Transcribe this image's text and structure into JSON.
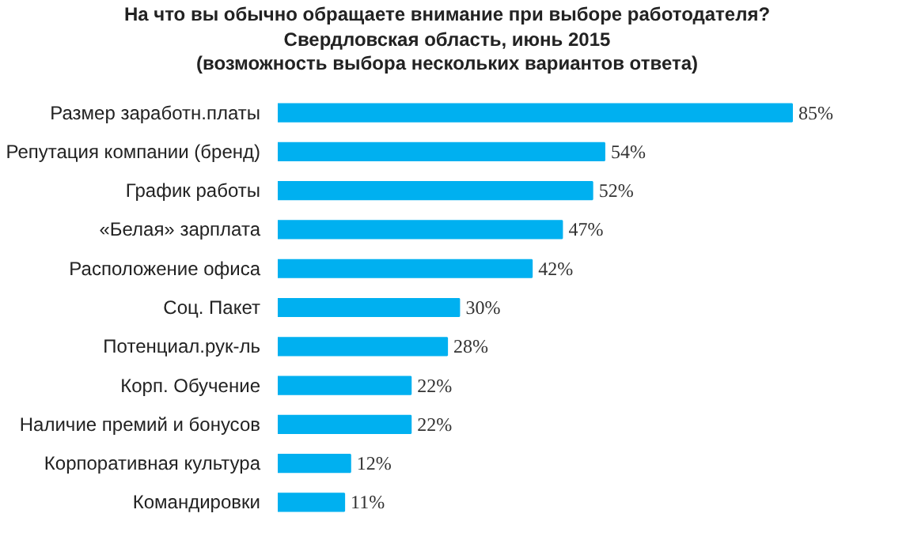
{
  "chart_data": {
    "type": "bar",
    "orientation": "horizontal",
    "title": "На что вы обычно обращаете внимание при выборе работодателя?",
    "subtitle": "Свердловская область, июнь 2015\n(возможность выбора нескольких вариантов ответа)",
    "categories": [
      "Размер заработн.платы",
      "Репутация компании (бренд)",
      "График работы",
      "«Белая» зарплата",
      "Расположение офиса",
      "Соц. Пакет",
      "Потенциал.рук-ль",
      "Корп. Обучение",
      "Наличие премий и бонусов",
      "Корпоративная культура",
      "Командировки"
    ],
    "values": [
      85,
      54,
      52,
      47,
      42,
      30,
      28,
      22,
      22,
      12,
      11
    ],
    "value_labels": [
      "85%",
      "54%",
      "52%",
      "47%",
      "42%",
      "30%",
      "28%",
      "22%",
      "22%",
      "12%",
      "11%"
    ],
    "color": "#00b0f0",
    "grid": false
  }
}
